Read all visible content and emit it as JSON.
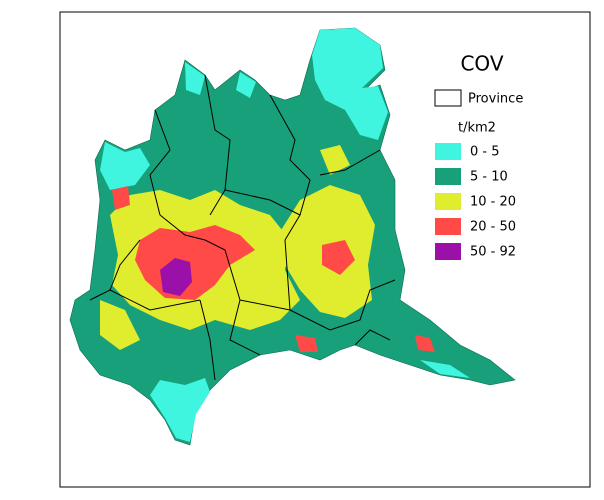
{
  "map": {
    "title": "COV",
    "boundary_legend": "Province",
    "unit": "t/km2",
    "classes": [
      {
        "label": "0 -   5",
        "color": "#3ff5e0"
      },
      {
        "label": "5 - 10",
        "color": "#17a07a"
      },
      {
        "label": "10 - 20",
        "color": "#e0ec2e"
      },
      {
        "label": "20 - 50",
        "color": "#ff4a48"
      },
      {
        "label": "50 - 92",
        "color": "#9a10a8"
      }
    ]
  }
}
